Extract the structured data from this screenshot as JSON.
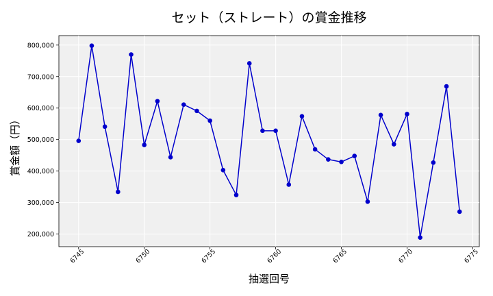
{
  "chart_data": {
    "type": "line",
    "title": "セット（ストレート）の賞金推移",
    "xlabel": "抽選回号",
    "ylabel": "賞金額（円）",
    "xlim": [
      6743.5,
      6775.5
    ],
    "ylim": [
      160000,
      830000
    ],
    "xticks": [
      6745,
      6750,
      6755,
      6760,
      6765,
      6770,
      6775
    ],
    "yticks": [
      200000,
      300000,
      400000,
      500000,
      600000,
      700000,
      800000
    ],
    "ytick_labels": [
      "200,000",
      "300,000",
      "400,000",
      "500,000",
      "600,000",
      "700,000",
      "800,000"
    ],
    "grid": true,
    "series": [
      {
        "color": "#0000cc",
        "x": [
          6745,
          6746,
          6747,
          6748,
          6749,
          6750,
          6751,
          6752,
          6753,
          6754,
          6755,
          6756,
          6757,
          6758,
          6759,
          6760,
          6761,
          6762,
          6763,
          6764,
          6765,
          6766,
          6767,
          6768,
          6769,
          6770,
          6771,
          6772,
          6773,
          6774
        ],
        "values": [
          496000,
          798000,
          541000,
          334000,
          770000,
          483000,
          622000,
          444000,
          611000,
          591000,
          560000,
          403000,
          324000,
          742000,
          528000,
          528000,
          357000,
          574000,
          469000,
          437000,
          429000,
          448000,
          303000,
          578000,
          485000,
          581000,
          189000,
          427000,
          669000,
          271000
        ]
      }
    ]
  }
}
